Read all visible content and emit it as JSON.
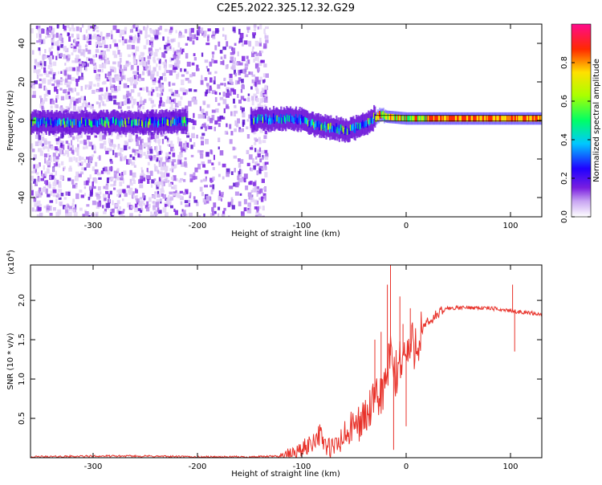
{
  "chart_data": {
    "title": "C2E5.2022.325.12.32.G29",
    "panels": [
      {
        "type": "heatmap",
        "xlabel": "Height of straight line (km)",
        "ylabel": "Frequency (Hz)",
        "xlim": [
          -360,
          130
        ],
        "ylim": [
          -50,
          50
        ],
        "xticks": [
          -300,
          -200,
          -100,
          0,
          100
        ],
        "yticks": [
          -40,
          -20,
          0,
          20,
          40
        ],
        "colorbar": {
          "label": "Normalized spectral amplitude",
          "range": [
            0.0,
            1.0
          ],
          "ticks": [
            "0.0",
            "0.2",
            "0.4",
            "0.6",
            "0.8"
          ],
          "colormap": [
            "#ffffff",
            "#6a0dad",
            "#0000ff",
            "#00ffff",
            "#00ff00",
            "#ffff00",
            "#ff0000",
            "#ff00aa"
          ]
        },
        "ridge": {
          "x": [
            -360,
            -250,
            -140,
            -120,
            -100,
            -90,
            -80,
            -70,
            -60,
            -55,
            -50,
            -40,
            -35,
            -30,
            -25,
            -20,
            0,
            20,
            60,
            100,
            130
          ],
          "y": [
            -1,
            -1,
            0.5,
            1,
            0.5,
            -2,
            -3,
            -4,
            -5,
            -5,
            -4,
            -2,
            0,
            2,
            3,
            2,
            1,
            1,
            1,
            1,
            1
          ]
        },
        "noise_region_xmax": -135,
        "data_gap": [
          -215,
          -150
        ]
      },
      {
        "type": "line",
        "xlabel": "Height of straight line (km)",
        "ylabel": "SNR (10 * v/v)",
        "scale_label": "(x10",
        "scale_exponent": "4",
        "scale_suffix": ")",
        "xlim": [
          -360,
          130
        ],
        "ylim": [
          0,
          2.45
        ],
        "xticks": [
          -300,
          -200,
          -100,
          0,
          100
        ],
        "yticks": [
          "0.5",
          "1.0",
          "1.5",
          "2.0"
        ],
        "color": "#e8322a",
        "series": {
          "x": [
            -360,
            -300,
            -250,
            -200,
            -150,
            -120,
            -110,
            -100,
            -90,
            -85,
            -80,
            -75,
            -70,
            -60,
            -50,
            -40,
            -30,
            -20,
            -15,
            -10,
            -5,
            0,
            10,
            20,
            30,
            40,
            60,
            80,
            100,
            110,
            120,
            130
          ],
          "y": [
            0.01,
            0.02,
            0.02,
            0.01,
            0.01,
            0.02,
            0.05,
            0.1,
            0.2,
            0.3,
            0.25,
            0.1,
            0.1,
            0.25,
            0.4,
            0.5,
            0.7,
            0.9,
            1.3,
            1.0,
            1.3,
            1.3,
            1.5,
            1.7,
            1.82,
            1.9,
            1.91,
            1.9,
            1.87,
            1.85,
            1.84,
            1.82
          ]
        },
        "spikes": [
          {
            "x": -30,
            "y": 1.5
          },
          {
            "x": -24,
            "y": 1.6
          },
          {
            "x": -18,
            "y": 2.2
          },
          {
            "x": -15,
            "y": 2.45
          },
          {
            "x": -12,
            "y": 0.1
          },
          {
            "x": -6,
            "y": 2.05
          },
          {
            "x": -3,
            "y": 1.7
          },
          {
            "x": 0,
            "y": 0.4
          },
          {
            "x": 4,
            "y": 1.9
          },
          {
            "x": 102,
            "y": 2.2
          },
          {
            "x": 104,
            "y": 1.35
          }
        ]
      }
    ]
  }
}
